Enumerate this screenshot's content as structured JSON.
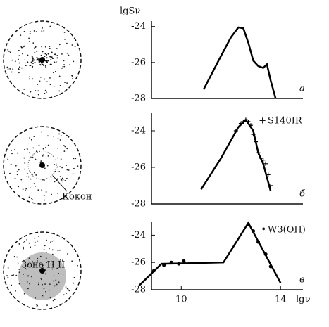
{
  "y_label": "lgSν",
  "x_label": "lgν",
  "diagrams": [
    {
      "label": null
    },
    {
      "label": "Кокон"
    },
    {
      "label": "Зона H II"
    }
  ],
  "chart_data": [
    {
      "type": "line",
      "panel_label": "а",
      "xlim": [
        8.8,
        14.9
      ],
      "ylim": [
        -28,
        -23.7
      ],
      "yticks": [
        -24,
        -26,
        -28
      ],
      "x": [
        10.9,
        11.5,
        12.0,
        12.3,
        12.5,
        12.7,
        12.9,
        13.1,
        13.3,
        13.45,
        13.6,
        13.8
      ],
      "values": [
        -27.5,
        -25.9,
        -24.6,
        -24.05,
        -24.1,
        -24.9,
        -25.9,
        -26.2,
        -26.3,
        -26.1,
        -27.0,
        -28.0
      ]
    },
    {
      "type": "line",
      "panel_label": "б",
      "xlim": [
        8.8,
        14.9
      ],
      "ylim": [
        -28,
        -23
      ],
      "yticks": [
        -24,
        -26,
        -28
      ],
      "x": [
        10.8,
        11.6,
        12.3,
        12.6,
        12.9,
        13.1,
        13.3,
        13.6
      ],
      "values": [
        -27.2,
        -25.5,
        -23.8,
        -23.4,
        -24.0,
        -25.2,
        -25.8,
        -27.3
      ],
      "observed": {
        "name": "S140IR",
        "marker": "+",
        "x": [
          12.2,
          12.4,
          12.5,
          12.6,
          12.7,
          12.8,
          12.9,
          13.0,
          13.1,
          13.2,
          13.3,
          13.4,
          13.5,
          13.6
        ],
        "values": [
          -24.0,
          -23.6,
          -23.5,
          -23.4,
          -23.5,
          -23.7,
          -24.2,
          -24.6,
          -25.2,
          -25.5,
          -25.6,
          -25.8,
          -26.4,
          -27.0
        ]
      }
    },
    {
      "type": "line",
      "panel_label": "в",
      "xlim": [
        8.8,
        14.9
      ],
      "ylim": [
        -28,
        -23
      ],
      "yticks": [
        -24,
        -26,
        -28
      ],
      "xticks": [
        10,
        14
      ],
      "x": [
        8.3,
        9.2,
        11.7,
        12.7,
        14.0
      ],
      "values": [
        -27.7,
        -26.1,
        -26.0,
        -23.1,
        -27.5
      ],
      "observed": {
        "name": "W3(OH)",
        "marker": "•",
        "x": [
          8.9,
          9.3,
          9.6,
          9.9,
          10.1,
          12.7,
          12.9,
          13.1,
          13.4,
          13.6
        ],
        "values": [
          -26.6,
          -26.2,
          -26.0,
          -26.1,
          -25.9,
          -23.2,
          -23.7,
          -24.5,
          -25.4,
          -26.3
        ]
      }
    }
  ]
}
